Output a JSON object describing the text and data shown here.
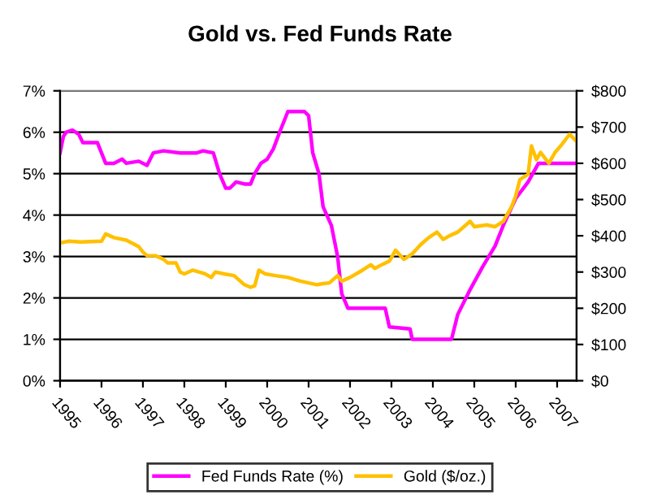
{
  "chart_data": {
    "type": "line",
    "title": "Gold vs. Fed Funds Rate",
    "xlim": [
      1995,
      2007.47
    ],
    "xticks": [
      1995,
      1996,
      1997,
      1998,
      1999,
      2000,
      2001,
      2002,
      2003,
      2004,
      2005,
      2006,
      2007
    ],
    "ylim": [
      0,
      7
    ],
    "yticks": [
      {
        "value": 0,
        "label": "0%"
      },
      {
        "value": 1,
        "label": "1%"
      },
      {
        "value": 2,
        "label": "2%"
      },
      {
        "value": 3,
        "label": "3%"
      },
      {
        "value": 4,
        "label": "4%"
      },
      {
        "value": 5,
        "label": "5%"
      },
      {
        "value": 6,
        "label": "6%"
      },
      {
        "value": 7,
        "label": "7%"
      }
    ],
    "y2lim": [
      0,
      800
    ],
    "y2ticks": [
      {
        "value": 0,
        "label": "$0"
      },
      {
        "value": 100,
        "label": "$100"
      },
      {
        "value": 200,
        "label": "$200"
      },
      {
        "value": 300,
        "label": "$300"
      },
      {
        "value": 400,
        "label": "$400"
      },
      {
        "value": 500,
        "label": "$500"
      },
      {
        "value": 600,
        "label": "$600"
      },
      {
        "value": 700,
        "label": "$700"
      },
      {
        "value": 800,
        "label": "$800"
      }
    ],
    "grid": "y",
    "legend": "bottom",
    "marker": "none",
    "line_style": "solid",
    "series": [
      {
        "name": "Fed Funds Rate (%)",
        "color": "#ff00ff",
        "x": [
          1995.0,
          1995.08,
          1995.15,
          1995.3,
          1995.45,
          1995.55,
          1995.9,
          1996.0,
          1996.1,
          1996.3,
          1996.5,
          1996.6,
          1996.9,
          1997.1,
          1997.25,
          1997.5,
          1997.9,
          1998.3,
          1998.45,
          1998.7,
          1998.85,
          1999.0,
          1999.1,
          1999.25,
          1999.45,
          1999.6,
          1999.7,
          1999.85,
          2000.0,
          2000.15,
          2000.3,
          2000.4,
          2000.5,
          2000.9,
          2001.0,
          2001.1,
          2001.25,
          2001.35,
          2001.55,
          2001.7,
          2001.8,
          2001.95,
          2002.85,
          2002.95,
          2003.45,
          2003.5,
          2004.45,
          2004.6,
          2004.9,
          2005.2,
          2005.5,
          2005.7,
          2006.0,
          2006.3,
          2006.55,
          2007.47
        ],
        "values": [
          5.5,
          5.9,
          6.0,
          6.05,
          5.95,
          5.75,
          5.75,
          5.5,
          5.25,
          5.25,
          5.35,
          5.25,
          5.3,
          5.2,
          5.5,
          5.55,
          5.5,
          5.5,
          5.55,
          5.5,
          5.0,
          4.65,
          4.65,
          4.8,
          4.75,
          4.75,
          5.0,
          5.25,
          5.35,
          5.6,
          6.0,
          6.25,
          6.5,
          6.5,
          6.4,
          5.5,
          5.0,
          4.2,
          3.75,
          3.0,
          2.1,
          1.75,
          1.75,
          1.3,
          1.25,
          1.0,
          1.0,
          1.6,
          2.2,
          2.75,
          3.25,
          3.75,
          4.4,
          4.8,
          5.25,
          5.25
        ]
      },
      {
        "name": "Gold ($/oz.)",
        "color": "#ffc000",
        "axis": "y2",
        "x": [
          1995.0,
          1995.2,
          1995.5,
          1996.0,
          1996.1,
          1996.3,
          1996.6,
          1996.9,
          1997.0,
          1997.1,
          1997.3,
          1997.5,
          1997.6,
          1997.8,
          1997.9,
          1998.0,
          1998.2,
          1998.5,
          1998.65,
          1998.75,
          1998.95,
          1999.2,
          1999.45,
          1999.6,
          1999.7,
          1999.8,
          1999.95,
          2000.2,
          2000.5,
          2000.8,
          2001.0,
          2001.2,
          2001.35,
          2001.5,
          2001.7,
          2001.8,
          2002.0,
          2002.3,
          2002.5,
          2002.6,
          2002.8,
          2002.95,
          2003.1,
          2003.3,
          2003.5,
          2003.7,
          2003.9,
          2004.1,
          2004.25,
          2004.4,
          2004.6,
          2004.9,
          2005.0,
          2005.3,
          2005.5,
          2005.7,
          2005.9,
          2006.0,
          2006.1,
          2006.3,
          2006.38,
          2006.5,
          2006.6,
          2006.8,
          2006.95,
          2007.1,
          2007.3,
          2007.47
        ],
        "values": [
          380,
          385,
          383,
          385,
          405,
          395,
          388,
          370,
          355,
          345,
          345,
          335,
          325,
          325,
          300,
          295,
          305,
          295,
          285,
          300,
          295,
          290,
          265,
          258,
          262,
          305,
          295,
          290,
          285,
          275,
          270,
          265,
          268,
          270,
          290,
          275,
          285,
          305,
          320,
          310,
          322,
          330,
          360,
          335,
          350,
          375,
          395,
          410,
          390,
          400,
          410,
          440,
          425,
          430,
          425,
          440,
          480,
          510,
          555,
          570,
          648,
          610,
          630,
          600,
          630,
          650,
          680,
          660
        ]
      }
    ]
  }
}
